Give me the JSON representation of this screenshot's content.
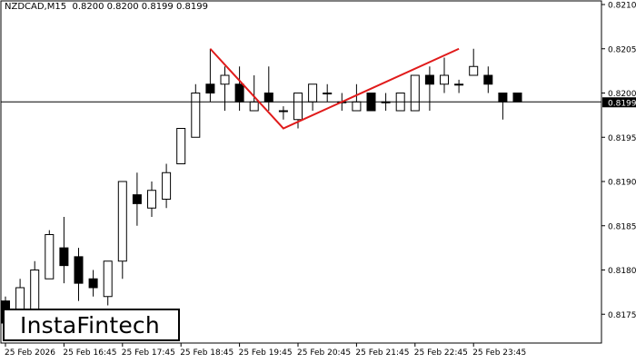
{
  "header": {
    "symbol": "NZDCAD,M15",
    "ohlc": "0.8200 0.8200 0.8199 0.8199"
  },
  "brand": {
    "logo_text": "InstaFintech"
  },
  "colors": {
    "background": "#ffffff",
    "pattern_line": "#e01a1a",
    "candle_bull_fill": "#ffffff",
    "candle_bear_fill": "#000000",
    "price_line": "#000000"
  },
  "chart_data": {
    "type": "candlestick",
    "title": "",
    "ylim": [
      0.817,
      0.821
    ],
    "y_ticks": [
      "0.8210",
      "0.8205",
      "0.8200",
      "0.8195",
      "0.8190",
      "0.8185",
      "0.8180",
      "0.8175"
    ],
    "x_ticks": [
      {
        "index": 0,
        "label": "25 Feb 2026"
      },
      {
        "index": 4,
        "label": "25 Feb 16:45"
      },
      {
        "index": 8,
        "label": "25 Feb 17:45"
      },
      {
        "index": 12,
        "label": "25 Feb 18:45"
      },
      {
        "index": 16,
        "label": "25 Feb 19:45"
      },
      {
        "index": 20,
        "label": "25 Feb 20:45"
      },
      {
        "index": 24,
        "label": "25 Feb 21:45"
      },
      {
        "index": 28,
        "label": "25 Feb 22:45"
      },
      {
        "index": 32,
        "label": "25 Feb 23:45"
      }
    ],
    "current_price": 0.8199,
    "current_price_label": "0.8199",
    "candles": [
      {
        "o": 0.81765,
        "h": 0.8177,
        "l": 0.8172,
        "c": 0.8174
      },
      {
        "o": 0.81745,
        "h": 0.8179,
        "l": 0.8172,
        "c": 0.8178
      },
      {
        "o": 0.81745,
        "h": 0.8181,
        "l": 0.81745,
        "c": 0.818
      },
      {
        "o": 0.8179,
        "h": 0.81845,
        "l": 0.8179,
        "c": 0.8184
      },
      {
        "o": 0.81825,
        "h": 0.8186,
        "l": 0.81785,
        "c": 0.81805
      },
      {
        "o": 0.81815,
        "h": 0.81825,
        "l": 0.81765,
        "c": 0.81785
      },
      {
        "o": 0.8179,
        "h": 0.818,
        "l": 0.8177,
        "c": 0.8178
      },
      {
        "o": 0.8177,
        "h": 0.8181,
        "l": 0.8176,
        "c": 0.8181
      },
      {
        "o": 0.8181,
        "h": 0.819,
        "l": 0.8179,
        "c": 0.819
      },
      {
        "o": 0.81885,
        "h": 0.8191,
        "l": 0.8185,
        "c": 0.81875
      },
      {
        "o": 0.8187,
        "h": 0.819,
        "l": 0.8186,
        "c": 0.8189
      },
      {
        "o": 0.8188,
        "h": 0.8192,
        "l": 0.8187,
        "c": 0.8191
      },
      {
        "o": 0.8192,
        "h": 0.8196,
        "l": 0.8192,
        "c": 0.8196
      },
      {
        "o": 0.8195,
        "h": 0.8201,
        "l": 0.8195,
        "c": 0.82
      },
      {
        "o": 0.8201,
        "h": 0.8205,
        "l": 0.8199,
        "c": 0.82
      },
      {
        "o": 0.8201,
        "h": 0.8203,
        "l": 0.8198,
        "c": 0.8202
      },
      {
        "o": 0.8201,
        "h": 0.8203,
        "l": 0.8198,
        "c": 0.8199
      },
      {
        "o": 0.8198,
        "h": 0.8202,
        "l": 0.8198,
        "c": 0.8199
      },
      {
        "o": 0.82,
        "h": 0.8203,
        "l": 0.8198,
        "c": 0.8199
      },
      {
        "o": 0.8198,
        "h": 0.81985,
        "l": 0.8197,
        "c": 0.8198
      },
      {
        "o": 0.8197,
        "h": 0.82,
        "l": 0.8196,
        "c": 0.82
      },
      {
        "o": 0.8199,
        "h": 0.8201,
        "l": 0.8198,
        "c": 0.8201
      },
      {
        "o": 0.82,
        "h": 0.8201,
        "l": 0.8199,
        "c": 0.82
      },
      {
        "o": 0.8199,
        "h": 0.82,
        "l": 0.8198,
        "c": 0.8199
      },
      {
        "o": 0.8198,
        "h": 0.8201,
        "l": 0.8198,
        "c": 0.8199
      },
      {
        "o": 0.82,
        "h": 0.82,
        "l": 0.8198,
        "c": 0.8198
      },
      {
        "o": 0.8199,
        "h": 0.82,
        "l": 0.8198,
        "c": 0.8199
      },
      {
        "o": 0.8198,
        "h": 0.82,
        "l": 0.8198,
        "c": 0.82
      },
      {
        "o": 0.8198,
        "h": 0.8202,
        "l": 0.8198,
        "c": 0.8202
      },
      {
        "o": 0.8202,
        "h": 0.8203,
        "l": 0.8198,
        "c": 0.8201
      },
      {
        "o": 0.8201,
        "h": 0.8204,
        "l": 0.82,
        "c": 0.8202
      },
      {
        "o": 0.8201,
        "h": 0.82015,
        "l": 0.82,
        "c": 0.8201
      },
      {
        "o": 0.8202,
        "h": 0.8205,
        "l": 0.8202,
        "c": 0.8203
      },
      {
        "o": 0.8202,
        "h": 0.8203,
        "l": 0.82,
        "c": 0.8201
      },
      {
        "o": 0.82,
        "h": 0.82,
        "l": 0.8197,
        "c": 0.8199
      },
      {
        "o": 0.82,
        "h": 0.82,
        "l": 0.8199,
        "c": 0.8199
      }
    ],
    "pattern": {
      "name": "Double Top",
      "points": [
        {
          "index": 14,
          "price": 0.8205
        },
        {
          "index": 19,
          "price": 0.8196
        },
        {
          "index": 31,
          "price": 0.8205
        }
      ]
    }
  }
}
